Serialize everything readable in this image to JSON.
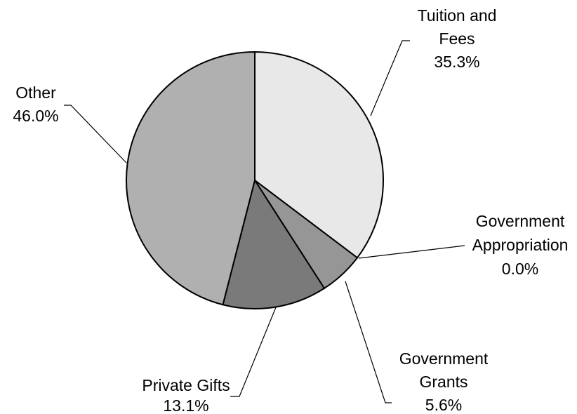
{
  "chart_data": {
    "type": "pie",
    "slices": [
      {
        "label_lines": [
          "Tuition and",
          "Fees"
        ],
        "percent_label": "35.3%",
        "value": 35.3,
        "color": "#e8e8e8"
      },
      {
        "label_lines": [
          "Government",
          "Appropriation"
        ],
        "percent_label": "0.0%",
        "value": 0.0,
        "color": "#d0d0d0"
      },
      {
        "label_lines": [
          "Government",
          "Grants"
        ],
        "percent_label": "5.6%",
        "value": 5.6,
        "color": "#969696"
      },
      {
        "label_lines": [
          "Private Gifts"
        ],
        "percent_label": "13.1%",
        "value": 13.1,
        "color": "#7a7a7a"
      },
      {
        "label_lines": [
          "Other"
        ],
        "percent_label": "46.0%",
        "value": 46.0,
        "color": "#b0b0b0"
      }
    ],
    "start_angle": "12 o'clock",
    "direction": "clockwise",
    "legend": "none"
  }
}
